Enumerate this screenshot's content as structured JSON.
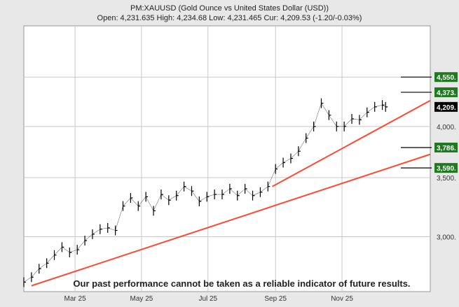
{
  "header": {
    "title": "PM:XAUUSD (Gold Ounce vs United States Dollar (USD))",
    "stats": "Open: 4,231.635 High: 4,234.68 Low: 4,231.465 Cur: 4,209.53 (-1.20/-0.03%)"
  },
  "disclaimer": "Our past performance cannot be taken as a reliable indicator of future results.",
  "colors": {
    "price": "#000000",
    "trend": "#ff4a33",
    "target": "#1f7a1f",
    "current": "#000000",
    "grid": "#c8c8c8"
  },
  "chart_data": {
    "type": "line",
    "series_style": "hlc-bars",
    "y_scale": "log",
    "ylim": [
      2600,
      5200
    ],
    "x_range": [
      "2025-01-13",
      "2026-01-21"
    ],
    "grid": true,
    "y_ticks": [
      "3,000.",
      "3,500.",
      "4,000.",
      "4,550."
    ],
    "x_ticks": [
      {
        "date": "2025-03-01",
        "label": "Mar 25"
      },
      {
        "date": "2025-05-01",
        "label": "May 25"
      },
      {
        "date": "2025-07-01",
        "label": "Jul 25"
      },
      {
        "date": "2025-09-01",
        "label": "Sep 25"
      },
      {
        "date": "2025-11-01",
        "label": "Nov 25"
      }
    ],
    "price": [
      [
        "2025-01-13",
        2665
      ],
      [
        "2025-01-20",
        2700
      ],
      [
        "2025-01-27",
        2760
      ],
      [
        "2025-02-03",
        2800
      ],
      [
        "2025-02-10",
        2860
      ],
      [
        "2025-02-17",
        2920
      ],
      [
        "2025-02-24",
        2880
      ],
      [
        "2025-03-03",
        2900
      ],
      [
        "2025-03-10",
        2970
      ],
      [
        "2025-03-17",
        3020
      ],
      [
        "2025-03-24",
        3060
      ],
      [
        "2025-03-31",
        3070
      ],
      [
        "2025-04-07",
        3050
      ],
      [
        "2025-04-14",
        3250
      ],
      [
        "2025-04-21",
        3320
      ],
      [
        "2025-04-28",
        3250
      ],
      [
        "2025-05-05",
        3330
      ],
      [
        "2025-05-12",
        3210
      ],
      [
        "2025-05-19",
        3350
      ],
      [
        "2025-05-26",
        3300
      ],
      [
        "2025-06-02",
        3340
      ],
      [
        "2025-06-09",
        3420
      ],
      [
        "2025-06-16",
        3380
      ],
      [
        "2025-06-23",
        3290
      ],
      [
        "2025-06-30",
        3330
      ],
      [
        "2025-07-07",
        3350
      ],
      [
        "2025-07-14",
        3350
      ],
      [
        "2025-07-21",
        3400
      ],
      [
        "2025-07-28",
        3340
      ],
      [
        "2025-08-04",
        3400
      ],
      [
        "2025-08-11",
        3340
      ],
      [
        "2025-08-18",
        3370
      ],
      [
        "2025-08-25",
        3420
      ],
      [
        "2025-09-01",
        3580
      ],
      [
        "2025-09-08",
        3640
      ],
      [
        "2025-09-15",
        3680
      ],
      [
        "2025-09-22",
        3750
      ],
      [
        "2025-09-29",
        3880
      ],
      [
        "2025-10-06",
        4000
      ],
      [
        "2025-10-13",
        4250
      ],
      [
        "2025-10-20",
        4120
      ],
      [
        "2025-10-27",
        4000
      ],
      [
        "2025-11-03",
        4000
      ],
      [
        "2025-11-10",
        4080
      ],
      [
        "2025-11-17",
        4070
      ],
      [
        "2025-11-24",
        4150
      ],
      [
        "2025-12-01",
        4210
      ],
      [
        "2025-12-08",
        4230
      ],
      [
        "2025-12-11",
        4209.53
      ]
    ],
    "trendlines": [
      {
        "points": [
          [
            "2025-01-20",
            2640
          ],
          [
            "2026-01-21",
            3720
          ]
        ]
      },
      {
        "points": [
          [
            "2025-08-29",
            3420
          ],
          [
            "2026-01-21",
            4280
          ]
        ]
      }
    ],
    "target_markers": [
      {
        "label": "4,550.",
        "value": 4550
      },
      {
        "label": "4,373.",
        "value": 4373
      },
      {
        "label": "3,786.",
        "value": 3786
      },
      {
        "label": "3,590.",
        "value": 3590
      }
    ],
    "current_label": {
      "label": "4,209.",
      "value": 4209.53
    }
  }
}
